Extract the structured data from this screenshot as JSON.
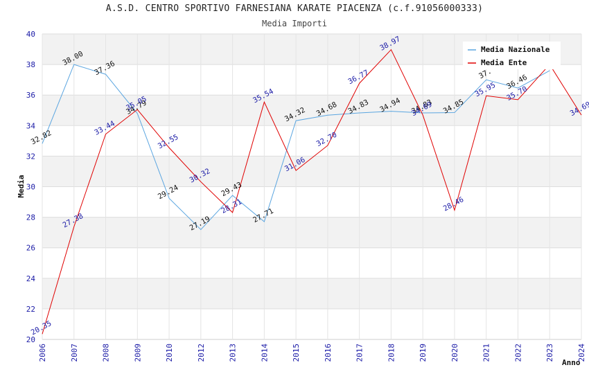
{
  "title": "A.S.D. CENTRO SPORTIVO FARNESIANA KARATE PIACENZA (c.f.91056000333)",
  "subtitle": "Media Importi",
  "colors": {
    "series_a": "#5aa5e0",
    "series_b": "#e00000",
    "band": "#f2f2f2",
    "grid": "#dddddd"
  },
  "chart_data": {
    "type": "line",
    "title": "A.S.D. CENTRO SPORTIVO FARNESIANA KARATE PIACENZA (c.f.91056000333)",
    "subtitle": "Media Importi",
    "xlabel": "Anno",
    "ylabel": "Media",
    "ylim": [
      20,
      40
    ],
    "yticks": [
      "20",
      "22",
      "24",
      "26",
      "28",
      "30",
      "32",
      "34",
      "36",
      "38",
      "40"
    ],
    "categories": [
      "2006",
      "2007",
      "2008",
      "2009",
      "2010",
      "2012",
      "2013",
      "2014",
      "2015",
      "2016",
      "2017",
      "2018",
      "2019",
      "2020",
      "2021",
      "2022",
      "2023",
      "2024"
    ],
    "grid": true,
    "legend_position": "top-right",
    "series": [
      {
        "name": "Media Nazionale",
        "values": [
          32.82,
          38.0,
          37.36,
          34.79,
          29.24,
          27.19,
          29.43,
          27.71,
          34.32,
          34.68,
          34.83,
          34.94,
          34.83,
          34.85,
          37.0,
          36.46,
          37.6,
          null
        ],
        "labels": [
          "32.82",
          "38.00",
          "37.36",
          "34.79",
          "29.24",
          "27.19",
          "29.43",
          "27.71",
          "34.32",
          "34.68",
          "34.83",
          "34.94",
          "34.83",
          "34.85",
          "37.",
          "36.46",
          "",
          ""
        ]
      },
      {
        "name": "Media Ente",
        "values": [
          20.35,
          27.38,
          33.44,
          35.05,
          32.55,
          30.32,
          28.31,
          35.54,
          31.06,
          32.7,
          36.77,
          38.97,
          34.69,
          28.46,
          35.95,
          35.7,
          38.0,
          34.69
        ],
        "labels": [
          "20.35",
          "27.38",
          "33.44",
          "35.05",
          "32.55",
          "30.32",
          "28.31",
          "35.54",
          "31.06",
          "32.70",
          "36.77",
          "38.97",
          "34.69",
          "28.46",
          "35.95",
          "35.70",
          "",
          "34.69"
        ]
      }
    ]
  }
}
